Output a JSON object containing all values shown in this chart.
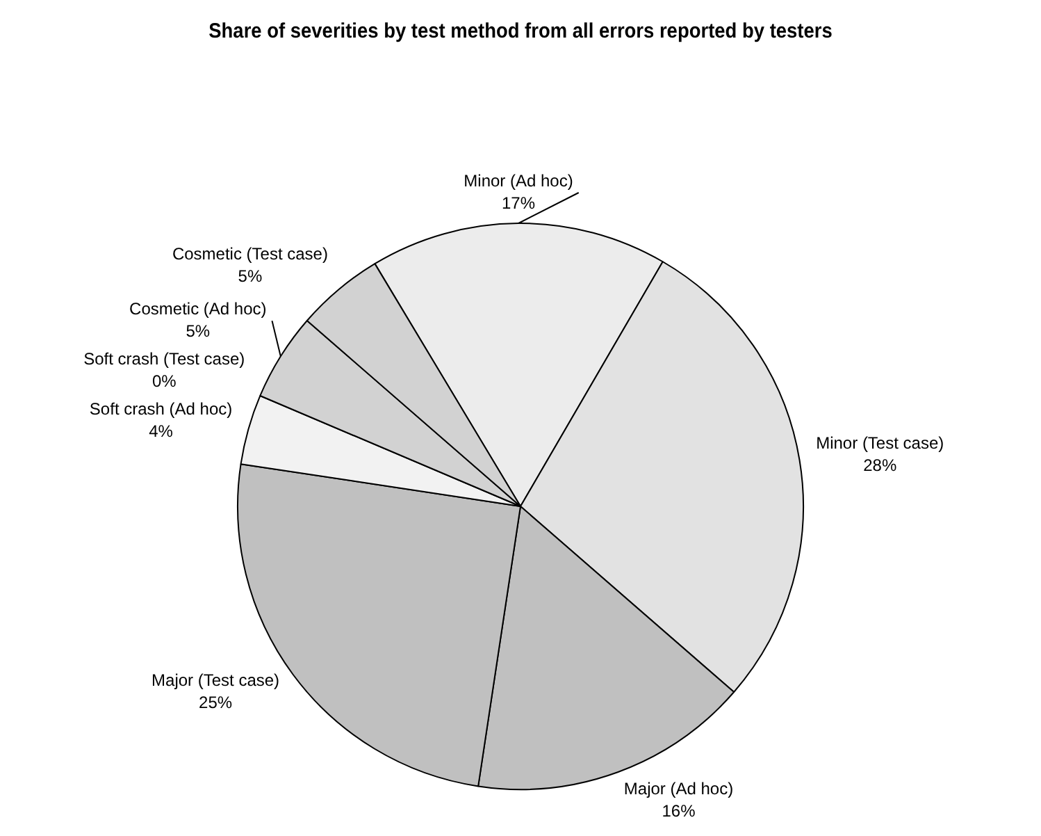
{
  "chart_data": {
    "type": "pie",
    "title": "Share of severities by test method from all errors reported by testers",
    "categories": [
      "Minor (Ad hoc)",
      "Minor (Test case)",
      "Major (Ad hoc)",
      "Major (Test case)",
      "Soft crash (Ad hoc)",
      "Soft crash (Test case)",
      "Cosmetic (Ad hoc)",
      "Cosmetic (Test case)"
    ],
    "values": [
      17,
      28,
      16,
      25,
      4,
      0,
      5,
      5
    ],
    "value_labels": [
      "17%",
      "28%",
      "16%",
      "25%",
      "4%",
      "0%",
      "5%",
      "5%"
    ],
    "colors": [
      "#ececec",
      "#e2e2e2",
      "#c0c0c0",
      "#c0c0c0",
      "#f2f2f2",
      "#f2f2f2",
      "#d2d2d2",
      "#d2d2d2"
    ],
    "legend": false
  }
}
